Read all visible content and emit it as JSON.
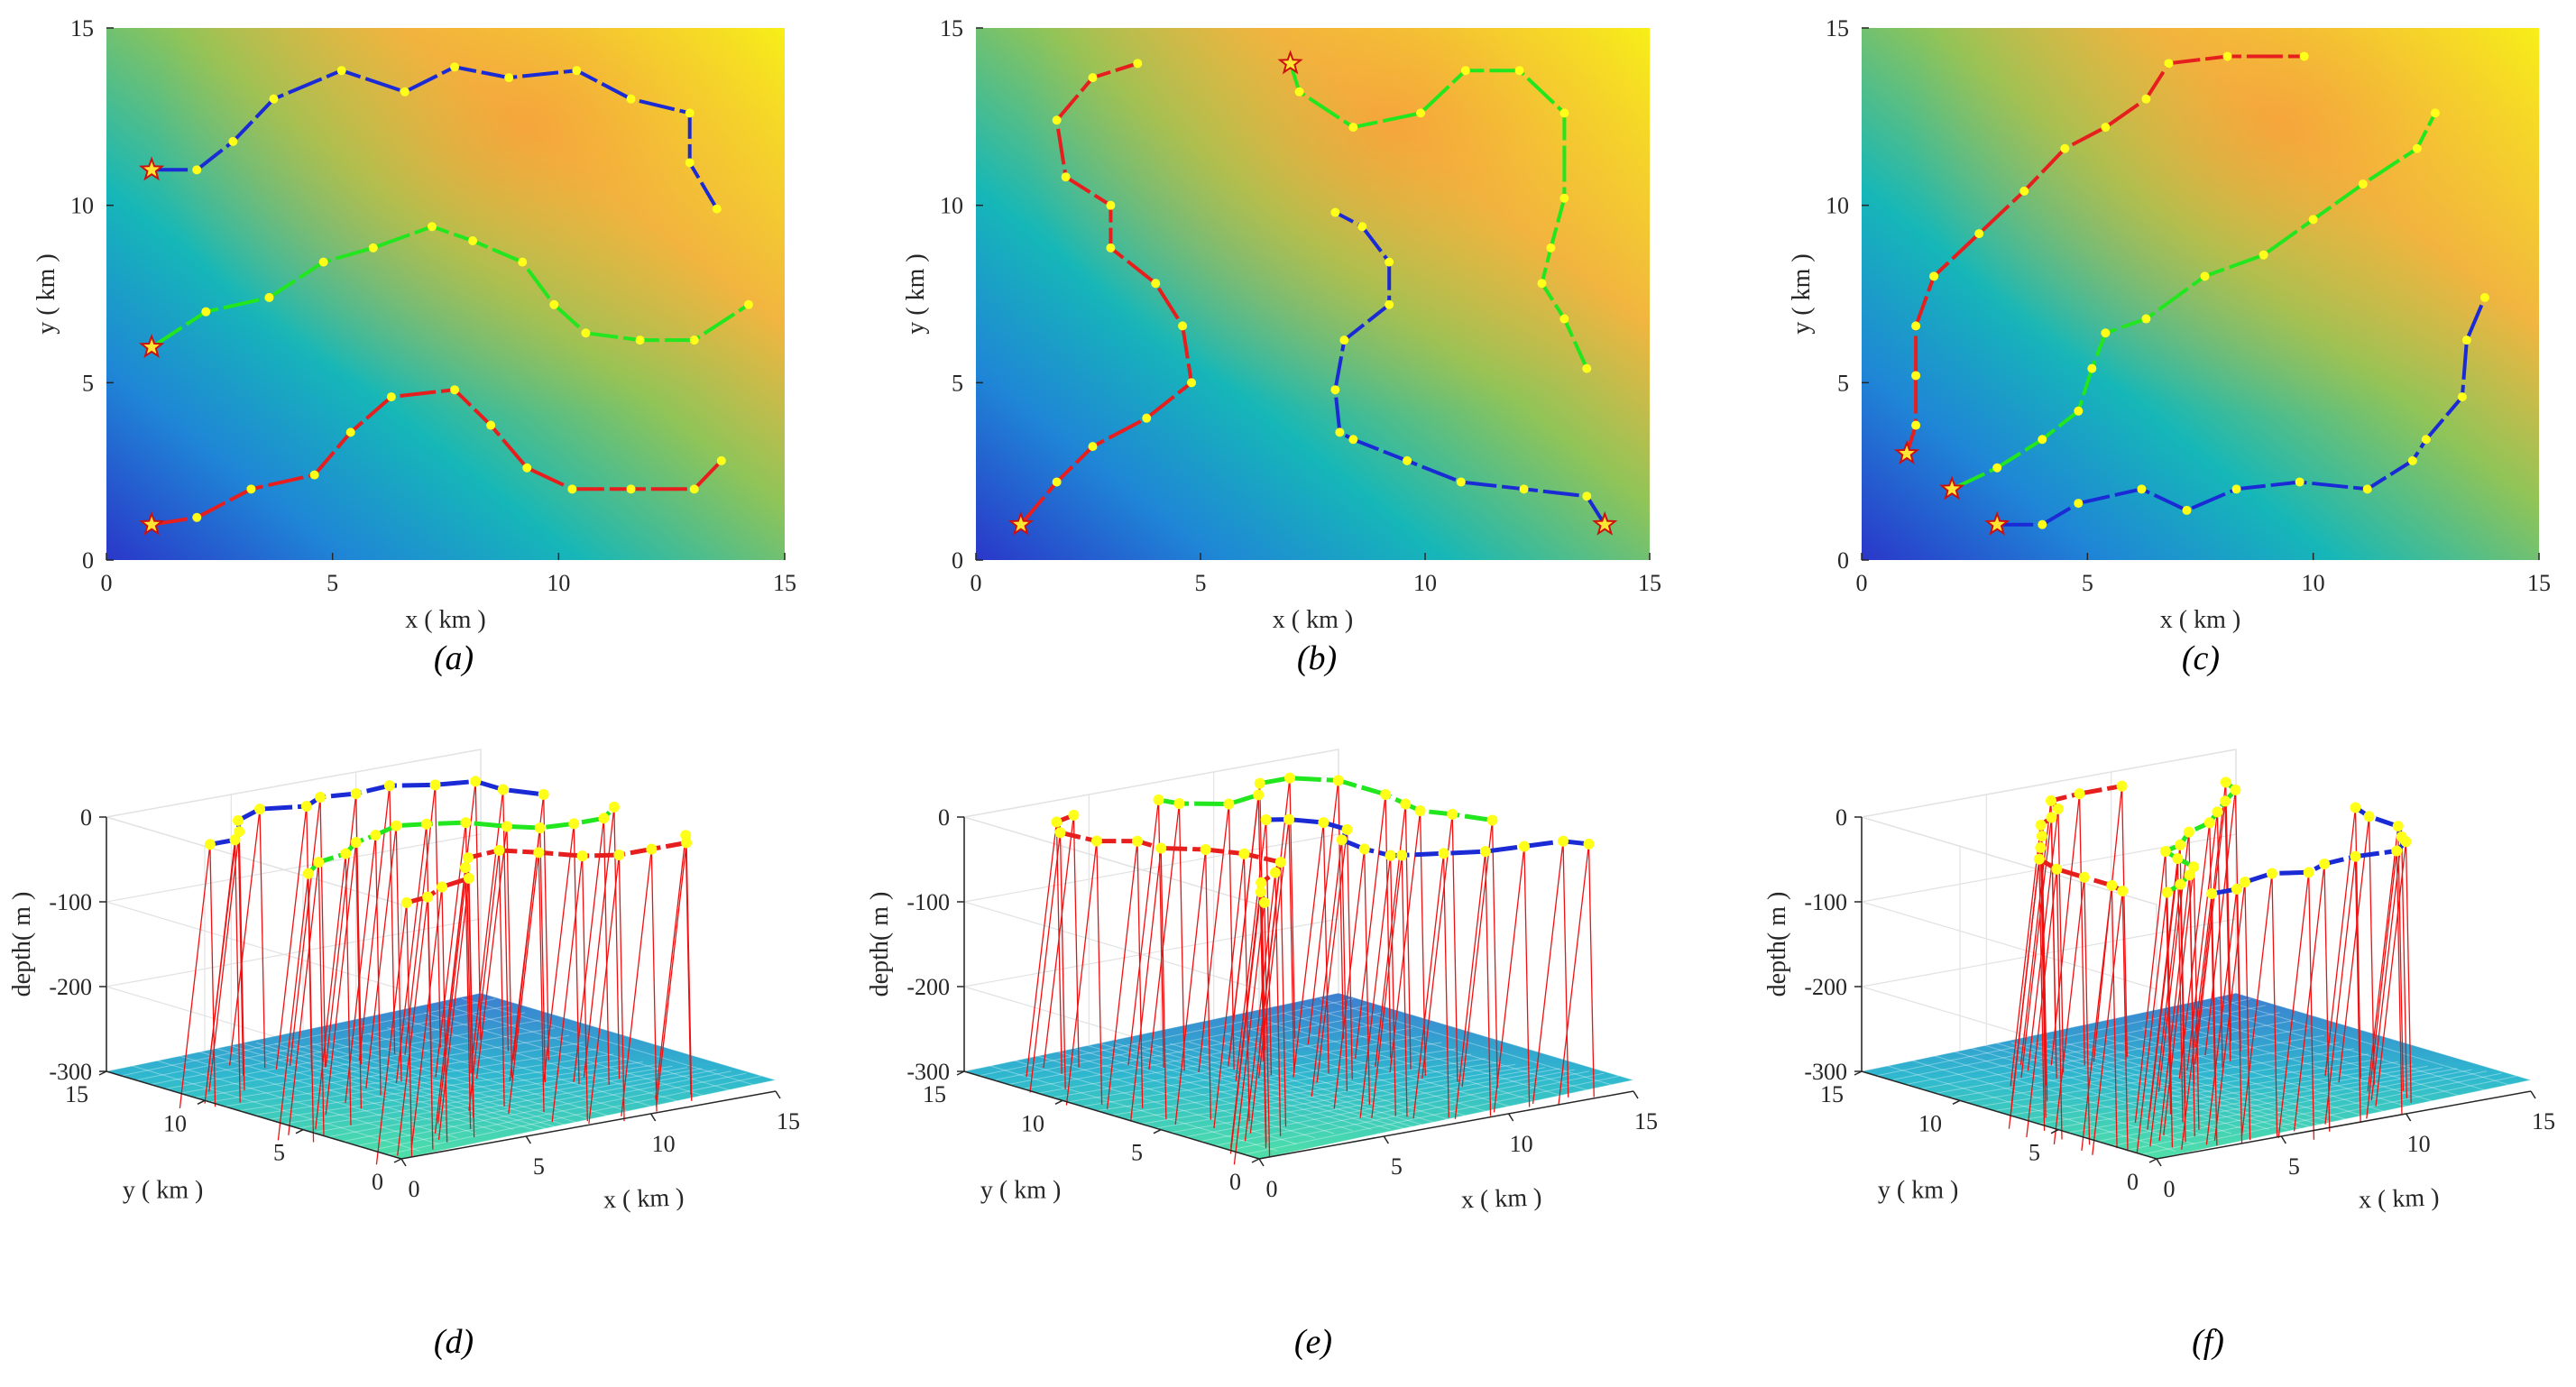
{
  "figure": {
    "captions": [
      "(a)",
      "(b)",
      "(c)",
      "(d)",
      "(e)",
      "(f)"
    ]
  },
  "chart_data": [
    {
      "id": "a",
      "type": "line",
      "view": "2d",
      "caption": "(a)",
      "xlabel": "x ( km )",
      "ylabel": "y ( km )",
      "xlim": [
        0,
        15
      ],
      "ylim": [
        0,
        15
      ],
      "xticks": [
        0,
        5,
        10,
        15
      ],
      "yticks": [
        0,
        5,
        10,
        15
      ],
      "starts": [
        [
          1,
          11
        ],
        [
          1,
          6
        ],
        [
          1,
          1
        ]
      ],
      "series": [
        {
          "name": "blue",
          "color": "#1a2bd6",
          "x": [
            1,
            2,
            2.8,
            3.7,
            5.2,
            6.6,
            7.7,
            8.9,
            10.4,
            11.6,
            12.9,
            12.9,
            13.5
          ],
          "y": [
            11,
            11,
            11.8,
            13.0,
            13.8,
            13.2,
            13.9,
            13.6,
            13.8,
            13.0,
            12.6,
            11.2,
            9.9
          ]
        },
        {
          "name": "green",
          "color": "#22e61e",
          "x": [
            1,
            2.2,
            3.6,
            4.8,
            5.9,
            7.2,
            8.1,
            9.2,
            9.9,
            10.6,
            11.8,
            13.0,
            14.2
          ],
          "y": [
            6,
            7.0,
            7.4,
            8.4,
            8.8,
            9.4,
            9.0,
            8.4,
            7.2,
            6.4,
            6.2,
            6.2,
            7.2
          ]
        },
        {
          "name": "red",
          "color": "#e61e1e",
          "x": [
            1,
            2,
            3.2,
            4.6,
            5.4,
            6.3,
            7.7,
            8.5,
            9.3,
            10.3,
            11.6,
            13.0,
            13.6
          ],
          "y": [
            1,
            1.2,
            2.0,
            2.4,
            3.6,
            4.6,
            4.8,
            3.8,
            2.6,
            2.0,
            2.0,
            2.0,
            2.8
          ]
        }
      ]
    },
    {
      "id": "b",
      "type": "line",
      "view": "2d",
      "caption": "(b)",
      "xlabel": "x ( km )",
      "ylabel": "y ( km )",
      "xlim": [
        0,
        15
      ],
      "ylim": [
        0,
        15
      ],
      "xticks": [
        0,
        5,
        10,
        15
      ],
      "yticks": [
        0,
        5,
        10,
        15
      ],
      "starts": [
        [
          7,
          14
        ],
        [
          14,
          1
        ],
        [
          1,
          1
        ]
      ],
      "series": [
        {
          "name": "red",
          "color": "#e61e1e",
          "x": [
            1,
            1.8,
            2.6,
            3.8,
            4.8,
            4.6,
            4.0,
            3.0,
            3.0,
            2.0,
            1.8,
            2.6,
            3.6
          ],
          "y": [
            1,
            2.2,
            3.2,
            4.0,
            5.0,
            6.6,
            7.8,
            8.8,
            10.0,
            10.8,
            12.4,
            13.6,
            14.0
          ]
        },
        {
          "name": "green",
          "color": "#22e61e",
          "x": [
            7,
            7.2,
            8.4,
            9.9,
            10.9,
            12.1,
            13.1,
            13.1,
            12.8,
            12.6,
            13.1,
            13.6
          ],
          "y": [
            14,
            13.2,
            12.2,
            12.6,
            13.8,
            13.8,
            12.6,
            10.2,
            8.8,
            7.8,
            6.8,
            5.4
          ]
        },
        {
          "name": "blue",
          "color": "#1a2bd6",
          "x": [
            14,
            13.6,
            12.2,
            10.8,
            9.6,
            8.4,
            8.1,
            8.0,
            8.2,
            9.2,
            9.2,
            8.6,
            8.0
          ],
          "y": [
            1,
            1.8,
            2.0,
            2.2,
            2.8,
            3.4,
            3.6,
            4.8,
            6.2,
            7.2,
            8.4,
            9.4,
            9.8
          ]
        }
      ]
    },
    {
      "id": "c",
      "type": "line",
      "view": "2d",
      "caption": "(c)",
      "xlabel": "x ( km )",
      "ylabel": "y ( km )",
      "xlim": [
        0,
        15
      ],
      "ylim": [
        0,
        15
      ],
      "xticks": [
        0,
        5,
        10,
        15
      ],
      "yticks": [
        0,
        5,
        10,
        15
      ],
      "starts": [
        [
          1,
          3
        ],
        [
          2,
          2
        ],
        [
          3,
          1
        ]
      ],
      "series": [
        {
          "name": "red",
          "color": "#e61e1e",
          "x": [
            1,
            1.2,
            1.2,
            1.2,
            1.6,
            2.6,
            3.6,
            4.5,
            5.4,
            6.3,
            6.8,
            8.1,
            9.8
          ],
          "y": [
            3,
            3.8,
            5.2,
            6.6,
            8.0,
            9.2,
            10.4,
            11.6,
            12.2,
            13.0,
            14.0,
            14.2,
            14.2
          ]
        },
        {
          "name": "green",
          "color": "#22e61e",
          "x": [
            2,
            3.0,
            4.0,
            4.8,
            5.1,
            5.4,
            6.3,
            7.6,
            8.9,
            10.0,
            11.1,
            12.3,
            12.7
          ],
          "y": [
            2,
            2.6,
            3.4,
            4.2,
            5.4,
            6.4,
            6.8,
            8.0,
            8.6,
            9.6,
            10.6,
            11.6,
            12.6
          ]
        },
        {
          "name": "blue",
          "color": "#1a2bd6",
          "x": [
            3,
            4.0,
            4.8,
            6.2,
            7.2,
            8.3,
            9.7,
            11.2,
            12.2,
            12.5,
            13.3,
            13.4,
            13.8
          ],
          "y": [
            1,
            1.0,
            1.6,
            2.0,
            1.4,
            2.0,
            2.2,
            2.0,
            2.8,
            3.4,
            4.6,
            6.2,
            7.4
          ]
        }
      ]
    },
    {
      "id": "d",
      "type": "line",
      "view": "3d",
      "caption": "(d)",
      "xlabel": "x ( km )",
      "ylabel": "y ( km )",
      "zlabel": "depth( m )",
      "xlim": [
        0,
        15
      ],
      "ylim": [
        0,
        15
      ],
      "zlim": [
        -300,
        0
      ],
      "xticks": [
        0,
        5,
        10,
        15
      ],
      "yticks": [
        0,
        5,
        10,
        15
      ],
      "zticks": [
        0,
        -100,
        -200,
        -300
      ],
      "surface_depth": -300,
      "line_depth": -10,
      "series_from": "a"
    },
    {
      "id": "e",
      "type": "line",
      "view": "3d",
      "caption": "(e)",
      "xlabel": "x ( km )",
      "ylabel": "y ( km )",
      "zlabel": "depth( m )",
      "xlim": [
        0,
        15
      ],
      "ylim": [
        0,
        15
      ],
      "zlim": [
        -300,
        0
      ],
      "xticks": [
        0,
        5,
        10,
        15
      ],
      "yticks": [
        0,
        5,
        10,
        15
      ],
      "zticks": [
        0,
        -100,
        -200,
        -300
      ],
      "surface_depth": -300,
      "line_depth": -10,
      "series_from": "b"
    },
    {
      "id": "f",
      "type": "line",
      "view": "3d",
      "caption": "(f)",
      "xlabel": "x ( km )",
      "ylabel": "y ( km )",
      "zlabel": "depth( m )",
      "xlim": [
        0,
        15
      ],
      "ylim": [
        0,
        15
      ],
      "zlim": [
        -300,
        0
      ],
      "xticks": [
        0,
        5,
        10,
        15
      ],
      "yticks": [
        0,
        5,
        10,
        15
      ],
      "zticks": [
        0,
        -100,
        -200,
        -300
      ],
      "surface_depth": -300,
      "line_depth": -10,
      "series_from": "c"
    }
  ]
}
